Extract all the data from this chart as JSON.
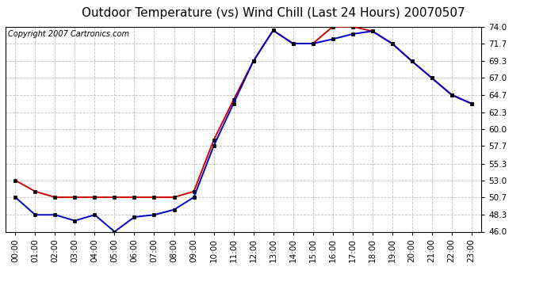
{
  "title": "Outdoor Temperature (vs) Wind Chill (Last 24 Hours) 20070507",
  "copyright": "Copyright 2007 Cartronics.com",
  "hours": [
    "00:00",
    "01:00",
    "02:00",
    "03:00",
    "04:00",
    "05:00",
    "06:00",
    "07:00",
    "08:00",
    "09:00",
    "10:00",
    "11:00",
    "12:00",
    "13:00",
    "14:00",
    "15:00",
    "16:00",
    "17:00",
    "18:00",
    "19:00",
    "20:00",
    "21:00",
    "22:00",
    "23:00"
  ],
  "temp": [
    53.0,
    51.5,
    50.7,
    50.7,
    50.7,
    50.7,
    50.7,
    50.7,
    50.7,
    51.5,
    58.5,
    64.0,
    69.3,
    73.5,
    71.7,
    71.7,
    74.0,
    74.0,
    73.4,
    71.7,
    69.3,
    67.0,
    64.7,
    63.5
  ],
  "windchill": [
    50.7,
    48.3,
    48.3,
    47.5,
    48.3,
    46.0,
    48.0,
    48.3,
    49.0,
    50.7,
    57.7,
    63.5,
    69.3,
    73.5,
    71.7,
    71.7,
    72.3,
    73.0,
    73.4,
    71.7,
    69.3,
    67.0,
    64.7,
    63.5
  ],
  "temp_color": "#cc0000",
  "windchill_color": "#0000cc",
  "bg_color": "#ffffff",
  "grid_color": "#c0c0c0",
  "ylim_min": 46.0,
  "ylim_max": 74.0,
  "yticks": [
    46.0,
    48.3,
    50.7,
    53.0,
    55.3,
    57.7,
    60.0,
    62.3,
    64.7,
    67.0,
    69.3,
    71.7,
    74.0
  ],
  "title_fontsize": 11,
  "copyright_fontsize": 7,
  "tick_fontsize": 7.5,
  "marker_size": 3.5
}
